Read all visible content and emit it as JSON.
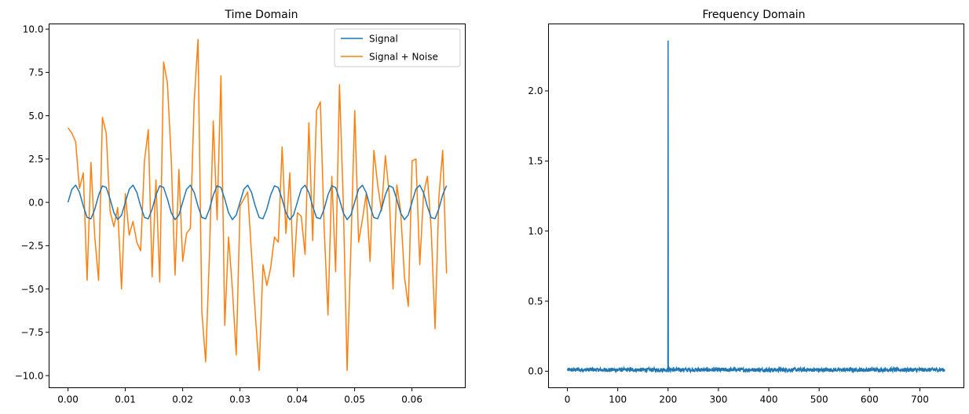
{
  "chart_data": [
    {
      "type": "line",
      "title": "Time Domain",
      "xlabel": "",
      "ylabel": "",
      "xlim": [
        -0.0033,
        0.0693
      ],
      "ylim": [
        -10.7,
        10.3
      ],
      "xticks": [
        0.0,
        0.01,
        0.02,
        0.03,
        0.04,
        0.05,
        0.06
      ],
      "xtick_labels": [
        "0.00",
        "0.01",
        "0.02",
        "0.03",
        "0.04",
        "0.05",
        "0.06"
      ],
      "yticks": [
        -10.0,
        -7.5,
        -5.0,
        -2.5,
        0.0,
        2.5,
        5.0,
        7.5,
        10.0
      ],
      "ytick_labels": [
        "−10.0",
        "−7.5",
        "−5.0",
        "−2.5",
        "0.0",
        "2.5",
        "5.0",
        "7.5",
        "10.0"
      ],
      "legend_position": "top-right",
      "grid": false,
      "sample_interval": 0.000667,
      "series": [
        {
          "name": "Signal",
          "color": "#1f77b4",
          "frequency_hz": 200,
          "amplitude": 1.0,
          "num_points": 100
        },
        {
          "name": "Signal + Noise",
          "color": "#ff7f0e",
          "values": [
            4.3,
            4.0,
            3.5,
            0.8,
            1.7,
            -4.5,
            2.3,
            -2.0,
            -4.5,
            4.9,
            4.0,
            -0.5,
            -1.4,
            -0.3,
            -5.0,
            0.5,
            -1.9,
            -1.1,
            -2.3,
            -2.8,
            2.4,
            4.2,
            -4.3,
            1.3,
            -4.6,
            8.1,
            6.9,
            2.5,
            -4.2,
            1.9,
            -3.4,
            -1.8,
            -1.5,
            5.8,
            9.4,
            -6.3,
            -9.2,
            -3.0,
            4.7,
            -1.0,
            7.3,
            -7.1,
            -2.0,
            -5.0,
            -8.8,
            -0.2,
            0.2,
            0.6,
            -3.0,
            -6.5,
            -9.7,
            -3.6,
            -4.8,
            -3.8,
            -2.0,
            -2.3,
            3.2,
            -1.8,
            1.7,
            -4.3,
            -0.6,
            -0.8,
            -3.0,
            4.6,
            -2.2,
            5.3,
            5.8,
            -1.5,
            -6.5,
            1.5,
            -4.0,
            6.8,
            0.0,
            -9.7,
            -2.5,
            5.3,
            -2.3,
            -1.0,
            0.5,
            -3.4,
            3.0,
            1.0,
            -0.5,
            2.7,
            0.5,
            -5.0,
            1.0,
            -0.5,
            -4.3,
            -6.0,
            2.4,
            2.5,
            -3.6,
            0.5,
            1.5,
            -1.6,
            -7.3,
            0.3,
            3.0,
            -4.1
          ]
        }
      ]
    },
    {
      "type": "line",
      "title": "Frequency Domain",
      "xlabel": "",
      "ylabel": "",
      "xlim": [
        -37.5,
        787.5
      ],
      "ylim": [
        -0.118,
        2.478
      ],
      "xticks": [
        0,
        100,
        200,
        300,
        400,
        500,
        600,
        700
      ],
      "xtick_labels": [
        "0",
        "100",
        "200",
        "300",
        "400",
        "500",
        "600",
        "700"
      ],
      "yticks": [
        0.0,
        0.5,
        1.0,
        1.5,
        2.0
      ],
      "ytick_labels": [
        "0.0",
        "0.5",
        "1.0",
        "1.5",
        "2.0"
      ],
      "grid": false,
      "series": [
        {
          "color": "#1f77b4",
          "x_range": [
            0,
            750
          ],
          "peak_x": 200,
          "peak_y": 2.36,
          "noise_floor": 0.01,
          "noise_max": 0.03
        }
      ]
    }
  ]
}
